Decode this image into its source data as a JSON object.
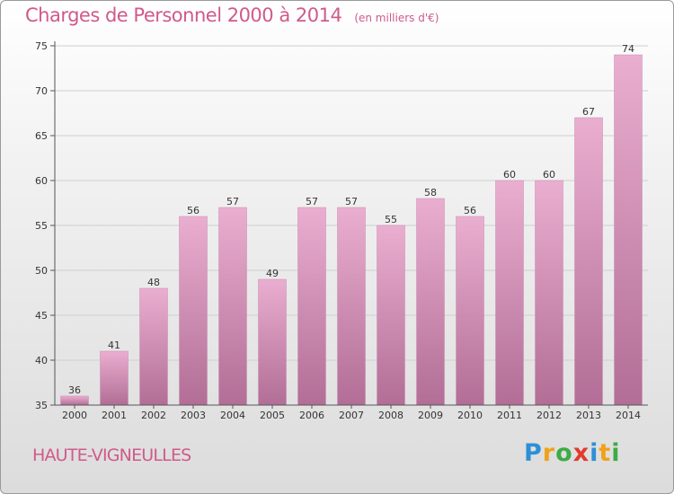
{
  "header": {
    "title": "Charges de Personnel 2000 à 2014",
    "subtitle": "(en milliers d'€)"
  },
  "footer": {
    "commune": "HAUTE-VIGNEULLES",
    "logo_letters": [
      "P",
      "r",
      "o",
      "x",
      "i",
      "t",
      "i"
    ],
    "logo_colors": [
      "#2e8fd6",
      "#f0a21a",
      "#3dab45",
      "#e23a2c",
      "#2e8fd6",
      "#f0a21a",
      "#3dab45"
    ]
  },
  "colors": {
    "title": "#d05a8a",
    "bar_top": "#eaaed0",
    "bar_bottom": "#b26e96",
    "bar_edge": "#c98bb0",
    "grid": "#cfcfcf"
  },
  "chart_data": {
    "type": "bar",
    "categories": [
      "2000",
      "2001",
      "2002",
      "2003",
      "2004",
      "2005",
      "2006",
      "2007",
      "2008",
      "2009",
      "2010",
      "2011",
      "2012",
      "2013",
      "2014"
    ],
    "values": [
      36,
      41,
      48,
      56,
      57,
      49,
      57,
      57,
      55,
      58,
      56,
      60,
      60,
      67,
      74
    ],
    "ylim": [
      35,
      75
    ],
    "yticks": [
      35,
      40,
      45,
      50,
      55,
      60,
      65,
      70,
      75
    ],
    "grid": true
  }
}
